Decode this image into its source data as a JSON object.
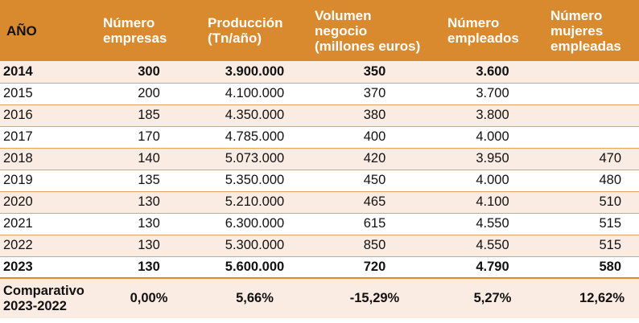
{
  "headers": [
    "AÑO",
    "Número\nempresas",
    "Producción\n(Tn/año)",
    "Volumen\nnegocio\n(millones euros)",
    "Número\nempleados",
    "Número\nmujeres\nempleadas"
  ],
  "rows": [
    {
      "year": "2014",
      "empresas": "300",
      "produccion": "3.900.000",
      "volumen": "350",
      "empleados": "3.600",
      "mujeres": ""
    },
    {
      "year": "2015",
      "empresas": "200",
      "produccion": "4.100.000",
      "volumen": "370",
      "empleados": "3.700",
      "mujeres": ""
    },
    {
      "year": "2016",
      "empresas": "185",
      "produccion": "4.350.000",
      "volumen": "380",
      "empleados": "3.800",
      "mujeres": ""
    },
    {
      "year": "2017",
      "empresas": "170",
      "produccion": "4.785.000",
      "volumen": "400",
      "empleados": "4.000",
      "mujeres": ""
    },
    {
      "year": "2018",
      "empresas": "140",
      "produccion": "5.073.000",
      "volumen": "420",
      "empleados": "3.950",
      "mujeres": "470"
    },
    {
      "year": "2019",
      "empresas": "135",
      "produccion": "5.350.000",
      "volumen": "450",
      "empleados": "4.000",
      "mujeres": "480"
    },
    {
      "year": "2020",
      "empresas": "130",
      "produccion": "5.210.000",
      "volumen": "465",
      "empleados": "4.100",
      "mujeres": "510"
    },
    {
      "year": "2021",
      "empresas": "130",
      "produccion": "6.300.000",
      "volumen": "615",
      "empleados": "4.550",
      "mujeres": "515"
    },
    {
      "year": "2022",
      "empresas": "130",
      "produccion": "5.300.000",
      "volumen": "850",
      "empleados": "4.550",
      "mujeres": "515"
    },
    {
      "year": "2023",
      "empresas": "130",
      "produccion": "5.600.000",
      "volumen": "720",
      "empleados": "4.790",
      "mujeres": "580"
    }
  ],
  "comparativo": {
    "label": "Comparativo\n2023-2022",
    "empresas": "0,00%",
    "produccion": "5,66%",
    "volumen": "-15,29%",
    "empleados": "5,27%",
    "mujeres": "12,62%"
  },
  "colors": {
    "header_bg": "#d98a2e",
    "shade_bg": "#fbece3",
    "border": "#e6a45a"
  }
}
